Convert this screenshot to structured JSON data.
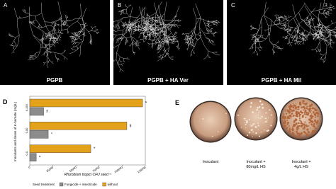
{
  "panels": [
    {
      "letter": "A",
      "caption": "PGPB"
    },
    {
      "letter": "B",
      "caption": "PGPB + HA Ver"
    },
    {
      "letter": "C",
      "caption": "PGPB + HA Mil"
    }
  ],
  "chart_data": {
    "type": "bar",
    "orientation": "horizontal",
    "panel_letter": "D",
    "categories": [
      "0.150",
      "0.50",
      "0.0"
    ],
    "series": [
      {
        "name": "Fungicide + insecticide",
        "color": "#8c8c8c",
        "values": [
          15000,
          20000,
          7000
        ],
        "letters": [
          "bc",
          "c",
          "d"
        ]
      },
      {
        "name": "without",
        "color": "#e3a21a",
        "values": [
          122000,
          105000,
          66000
        ],
        "letters": [
          "a",
          "ab",
          "b"
        ]
      }
    ],
    "xlim": [
      0,
      125000
    ],
    "xticks": [
      0,
      25000,
      50000,
      75000,
      100000,
      125000
    ],
    "xlabel": "Rhizobium tropici CFU seed⁻¹",
    "ylabel": "Inoculants and doses of K-humate (mg/L)",
    "legend_title": "Seed treatment"
  },
  "dishes": {
    "letter": "E",
    "items": [
      {
        "lines": [
          "Inoculant"
        ]
      },
      {
        "lines": [
          "Inoculant +",
          "80mg/L HS"
        ]
      },
      {
        "lines": [
          "Inoculant +",
          "4g/L HS"
        ]
      }
    ]
  }
}
